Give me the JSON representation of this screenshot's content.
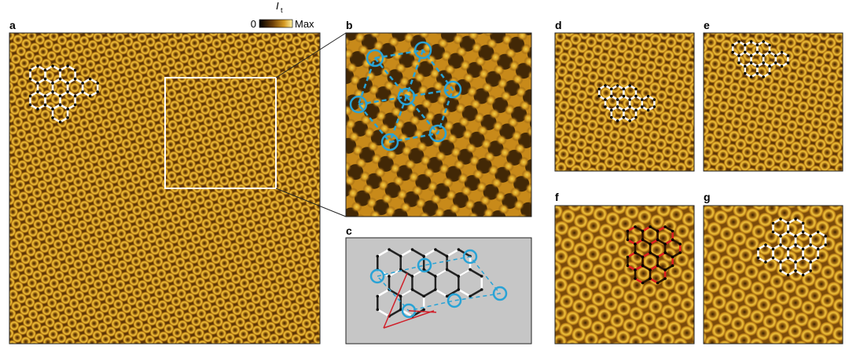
{
  "panels": [
    {
      "label": "a"
    },
    {
      "label": "b"
    },
    {
      "label": "c"
    },
    {
      "label": "d"
    },
    {
      "label": "e"
    },
    {
      "label": "f"
    },
    {
      "label": "g"
    }
  ],
  "colorbar": {
    "title": "I",
    "subscript": "t",
    "min_label": "0",
    "max_label": "Max"
  }
}
